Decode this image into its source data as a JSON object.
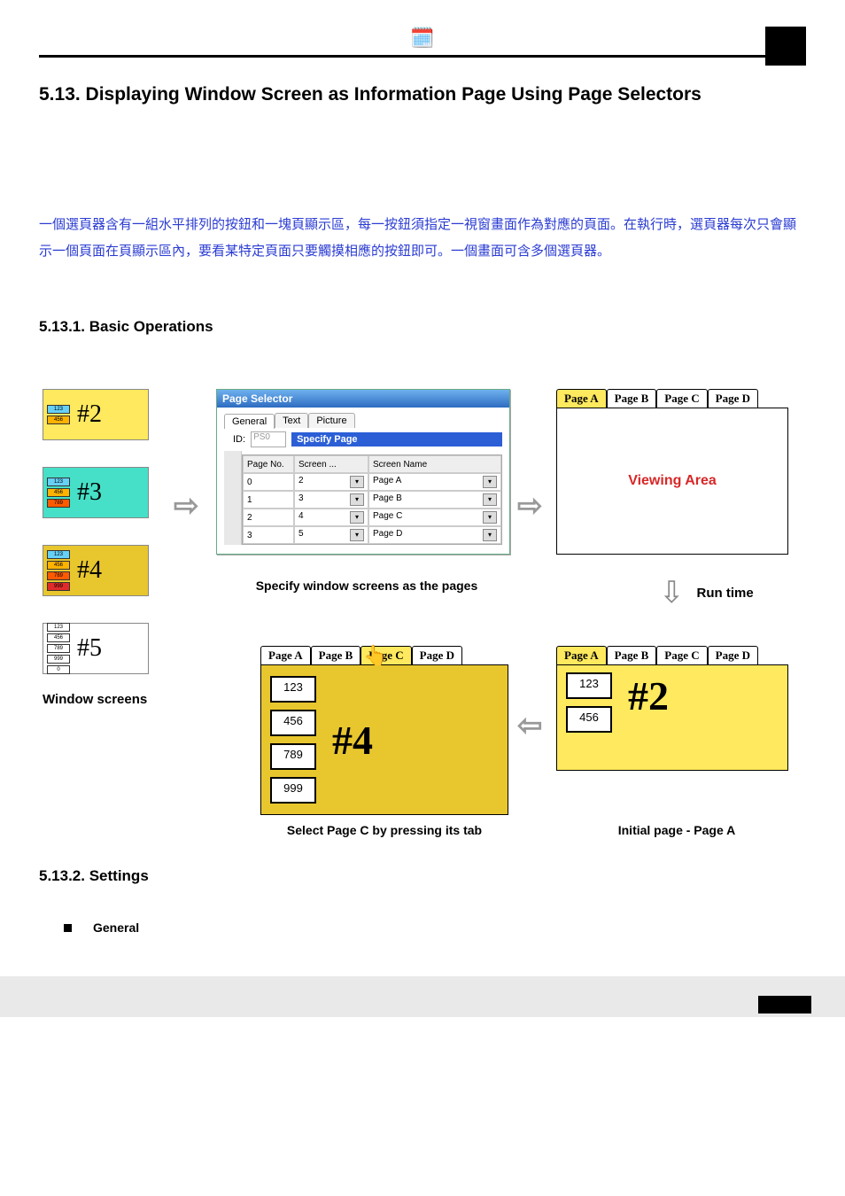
{
  "heading": "5.13.  Displaying Window Screen as Information Page Using Page Selectors",
  "cn_text": "一個選頁器含有一組水平排列的按鈕和一塊頁顯示區，每一按鈕須指定一視窗畫面作為對應的頁面。在執行時，選頁器每次只會顯示一個頁面在頁顯示區內，要看某特定頁面只要觸摸相應的按鈕即可。一個畫面可含多個選頁器。",
  "sub1": "5.13.1. Basic Operations",
  "sub2": "5.13.2. Settings",
  "bullet_general": "General",
  "window_screens_label": "Window screens",
  "ws_items": [
    {
      "hash": "#2",
      "bg": "#ffe95e",
      "minis": [
        "123",
        "456"
      ],
      "mini_bg": [
        "#66d0f7",
        "#ffb300"
      ]
    },
    {
      "hash": "#3",
      "bg": "#46e0c8",
      "minis": [
        "123",
        "456",
        "789"
      ],
      "mini_bg": [
        "#66d0f7",
        "#ffb300",
        "#ff5a00"
      ]
    },
    {
      "hash": "#4",
      "bg": "#e8c62e",
      "minis": [
        "123",
        "456",
        "789",
        "999"
      ],
      "mini_bg": [
        "#66d0f7",
        "#ffb300",
        "#ff5a00",
        "#e02b2b"
      ]
    },
    {
      "hash": "#5",
      "bg": "#ffffff",
      "minis": [
        "123",
        "456",
        "789",
        "999",
        "0"
      ],
      "mini_bg": [
        "#fff",
        "#fff",
        "#fff",
        "#fff",
        "#fff"
      ]
    }
  ],
  "dialog": {
    "title": "Page Selector",
    "tabs": [
      "General",
      "Text",
      "Picture"
    ],
    "id_label": "ID:",
    "id_value": "PS0",
    "specify": "Specify Page",
    "cols": [
      "Page No.",
      "Screen ...",
      "Screen Name"
    ],
    "rows": [
      {
        "no": "0",
        "screen": "2",
        "name": "Page A"
      },
      {
        "no": "1",
        "screen": "3",
        "name": "Page B"
      },
      {
        "no": "2",
        "screen": "4",
        "name": "Page C"
      },
      {
        "no": "3",
        "screen": "5",
        "name": "Page D"
      }
    ]
  },
  "caption_specify": "Specify window screens as the pages",
  "page_tabs": [
    "Page A",
    "Page B",
    "Page C",
    "Page D"
  ],
  "viewing_area_text": "Viewing Area",
  "run_time": "Run time",
  "result_c": {
    "selected_index": 2,
    "values": [
      "123",
      "456",
      "789",
      "999"
    ],
    "hash": "#4",
    "caption": "Select Page C by pressing its tab"
  },
  "result_a": {
    "selected_index": 0,
    "values": [
      "123",
      "456"
    ],
    "hash": "#2",
    "caption": "Initial page - Page A"
  },
  "colors": {
    "blue_text": "#2a3bd2",
    "red_text": "#d82727",
    "yellow": "#ffe95e",
    "dark_yellow": "#e8c62e"
  }
}
